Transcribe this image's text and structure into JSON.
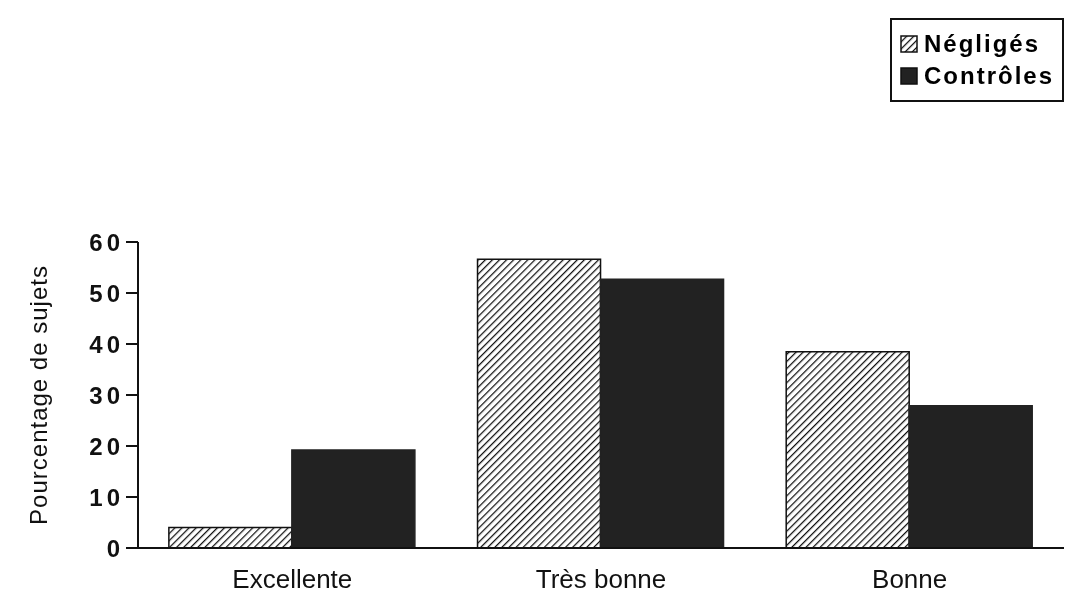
{
  "chart_data": {
    "type": "bar",
    "ylabel": "Pourcentage de sujets",
    "categories": [
      "Excellente",
      "Très bonne",
      "Bonne"
    ],
    "series": [
      {
        "name": "Négligés",
        "color": "#111111",
        "values": [
          4,
          56.6,
          38.5
        ]
      },
      {
        "name": "Contrôles",
        "color": "#222222",
        "values": [
          19.2,
          52.7,
          27.9
        ]
      }
    ],
    "ylim": [
      0,
      60
    ],
    "yticks": [
      0,
      10,
      20,
      30,
      40,
      50,
      60
    ],
    "legend": "top right"
  }
}
